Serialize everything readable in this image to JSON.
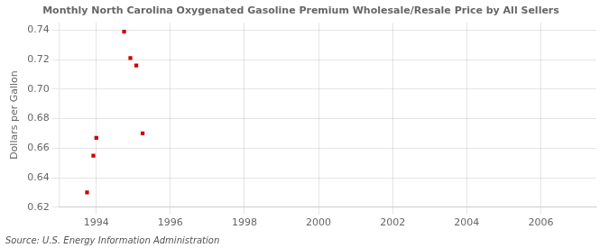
{
  "chart_data": {
    "type": "scatter",
    "title": "Monthly North Carolina Oxygenated Gasoline Premium Wholesale/Resale Price by All Sellers",
    "ylabel": "Dollars per Gallon",
    "annotations": [
      "Source: U.S. Energy Information Administration"
    ],
    "x": [
      1993.75,
      1993.92,
      1994.0,
      1994.75,
      1994.92,
      1995.08,
      1995.25
    ],
    "values": [
      0.63,
      0.655,
      0.667,
      0.739,
      0.721,
      0.716,
      0.67
    ],
    "color": "#cc0000",
    "marker": "square",
    "xlim": [
      1993.0,
      2007.5
    ],
    "ylim": [
      0.62,
      0.745
    ],
    "xticks": [
      1994,
      1996,
      1998,
      2000,
      2002,
      2004,
      2006
    ],
    "yticks": [
      0.62,
      0.64,
      0.66,
      0.68,
      {
        "value": 0.7,
        "label": "0.70"
      },
      0.72,
      0.74
    ],
    "grid": true
  }
}
